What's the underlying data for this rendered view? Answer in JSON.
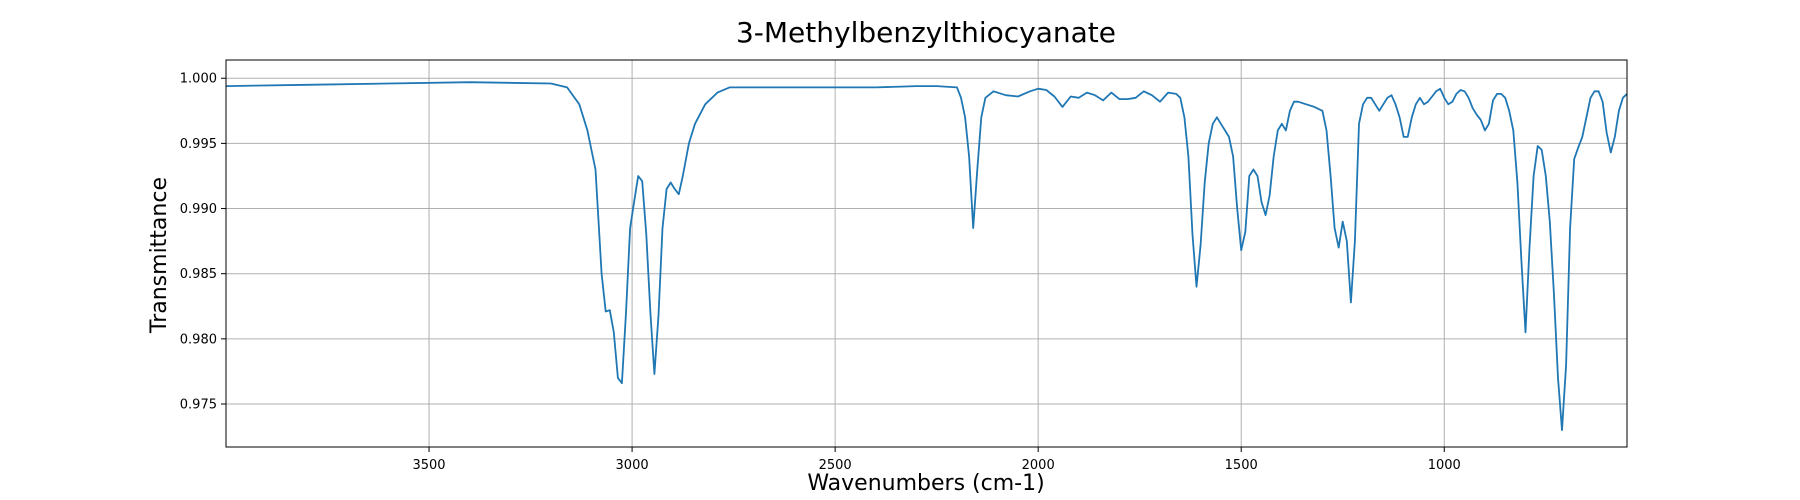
{
  "chart_data": {
    "type": "line",
    "title": "3-Methylbenzylthiocyanate",
    "xlabel": "Wavenumbers (cm-1)",
    "ylabel": "Transmittance",
    "xlim": [
      4000,
      550
    ],
    "ylim": [
      0.9717,
      1.0014
    ],
    "x_reversed": true,
    "grid": true,
    "xticks": [
      3500,
      3000,
      2500,
      2000,
      1500,
      1000
    ],
    "yticks": [
      0.975,
      0.98,
      0.985,
      0.99,
      0.995,
      1.0
    ],
    "series": [
      {
        "color": "#1f77b4",
        "x": [
          4000,
          3800,
          3600,
          3400,
          3200,
          3160,
          3130,
          3110,
          3090,
          3075,
          3065,
          3055,
          3045,
          3035,
          3025,
          3015,
          3005,
          2995,
          2985,
          2975,
          2965,
          2955,
          2945,
          2935,
          2925,
          2915,
          2905,
          2895,
          2885,
          2875,
          2860,
          2845,
          2820,
          2790,
          2760,
          2700,
          2600,
          2500,
          2400,
          2300,
          2250,
          2200,
          2190,
          2180,
          2170,
          2160,
          2150,
          2140,
          2130,
          2110,
          2080,
          2050,
          2020,
          2000,
          1980,
          1960,
          1940,
          1920,
          1900,
          1880,
          1860,
          1840,
          1820,
          1800,
          1780,
          1760,
          1740,
          1720,
          1700,
          1680,
          1660,
          1650,
          1640,
          1630,
          1620,
          1610,
          1600,
          1590,
          1580,
          1570,
          1560,
          1550,
          1540,
          1530,
          1520,
          1510,
          1500,
          1490,
          1480,
          1470,
          1460,
          1450,
          1440,
          1430,
          1420,
          1410,
          1400,
          1390,
          1380,
          1370,
          1360,
          1340,
          1320,
          1300,
          1290,
          1280,
          1270,
          1260,
          1250,
          1240,
          1230,
          1220,
          1210,
          1200,
          1190,
          1180,
          1170,
          1160,
          1150,
          1140,
          1130,
          1120,
          1110,
          1100,
          1090,
          1080,
          1070,
          1060,
          1050,
          1040,
          1030,
          1020,
          1010,
          1000,
          990,
          980,
          970,
          960,
          950,
          940,
          930,
          920,
          910,
          900,
          890,
          880,
          870,
          860,
          850,
          840,
          830,
          820,
          810,
          800,
          790,
          780,
          770,
          760,
          750,
          740,
          730,
          720,
          710,
          700,
          690,
          680,
          670,
          660,
          650,
          640,
          630,
          620,
          610,
          600,
          590,
          580,
          570,
          560,
          550
        ],
        "y": [
          0.9994,
          0.9995,
          0.9996,
          0.9997,
          0.9996,
          0.9993,
          0.998,
          0.996,
          0.993,
          0.985,
          0.9821,
          0.9822,
          0.9805,
          0.977,
          0.9766,
          0.982,
          0.9885,
          0.9905,
          0.9925,
          0.9921,
          0.988,
          0.982,
          0.9773,
          0.9818,
          0.9885,
          0.9915,
          0.992,
          0.9915,
          0.9911,
          0.9925,
          0.995,
          0.9965,
          0.998,
          0.9989,
          0.9993,
          0.9993,
          0.9993,
          0.9993,
          0.9993,
          0.9994,
          0.9994,
          0.9993,
          0.9985,
          0.997,
          0.994,
          0.9885,
          0.993,
          0.997,
          0.9985,
          0.999,
          0.9987,
          0.9986,
          0.999,
          0.9992,
          0.9991,
          0.9986,
          0.9978,
          0.9986,
          0.9985,
          0.9989,
          0.9987,
          0.9983,
          0.9989,
          0.9984,
          0.9984,
          0.9985,
          0.999,
          0.9987,
          0.9982,
          0.9989,
          0.9988,
          0.9985,
          0.997,
          0.994,
          0.988,
          0.984,
          0.9872,
          0.992,
          0.995,
          0.9965,
          0.997,
          0.9965,
          0.996,
          0.9955,
          0.994,
          0.99,
          0.9868,
          0.9882,
          0.9925,
          0.993,
          0.9925,
          0.9905,
          0.9895,
          0.991,
          0.994,
          0.996,
          0.9965,
          0.996,
          0.9975,
          0.9982,
          0.9982,
          0.998,
          0.9978,
          0.9975,
          0.996,
          0.9925,
          0.9885,
          0.987,
          0.989,
          0.9875,
          0.9828,
          0.9875,
          0.9965,
          0.998,
          0.9985,
          0.9985,
          0.998,
          0.9975,
          0.998,
          0.9985,
          0.9987,
          0.998,
          0.997,
          0.9955,
          0.9955,
          0.997,
          0.998,
          0.9985,
          0.998,
          0.9982,
          0.9986,
          0.999,
          0.9992,
          0.9985,
          0.998,
          0.9982,
          0.9988,
          0.9991,
          0.999,
          0.9985,
          0.9977,
          0.9972,
          0.9968,
          0.996,
          0.9965,
          0.9983,
          0.9988,
          0.9988,
          0.9985,
          0.9975,
          0.996,
          0.992,
          0.986,
          0.9805,
          0.987,
          0.9925,
          0.9948,
          0.9945,
          0.9925,
          0.989,
          0.9835,
          0.977,
          0.973,
          0.978,
          0.9885,
          0.9938,
          0.9947,
          0.9955,
          0.997,
          0.9985,
          0.999,
          0.999,
          0.9982,
          0.9958,
          0.9943,
          0.9955,
          0.9975,
          0.9985,
          0.9988
        ]
      }
    ]
  }
}
